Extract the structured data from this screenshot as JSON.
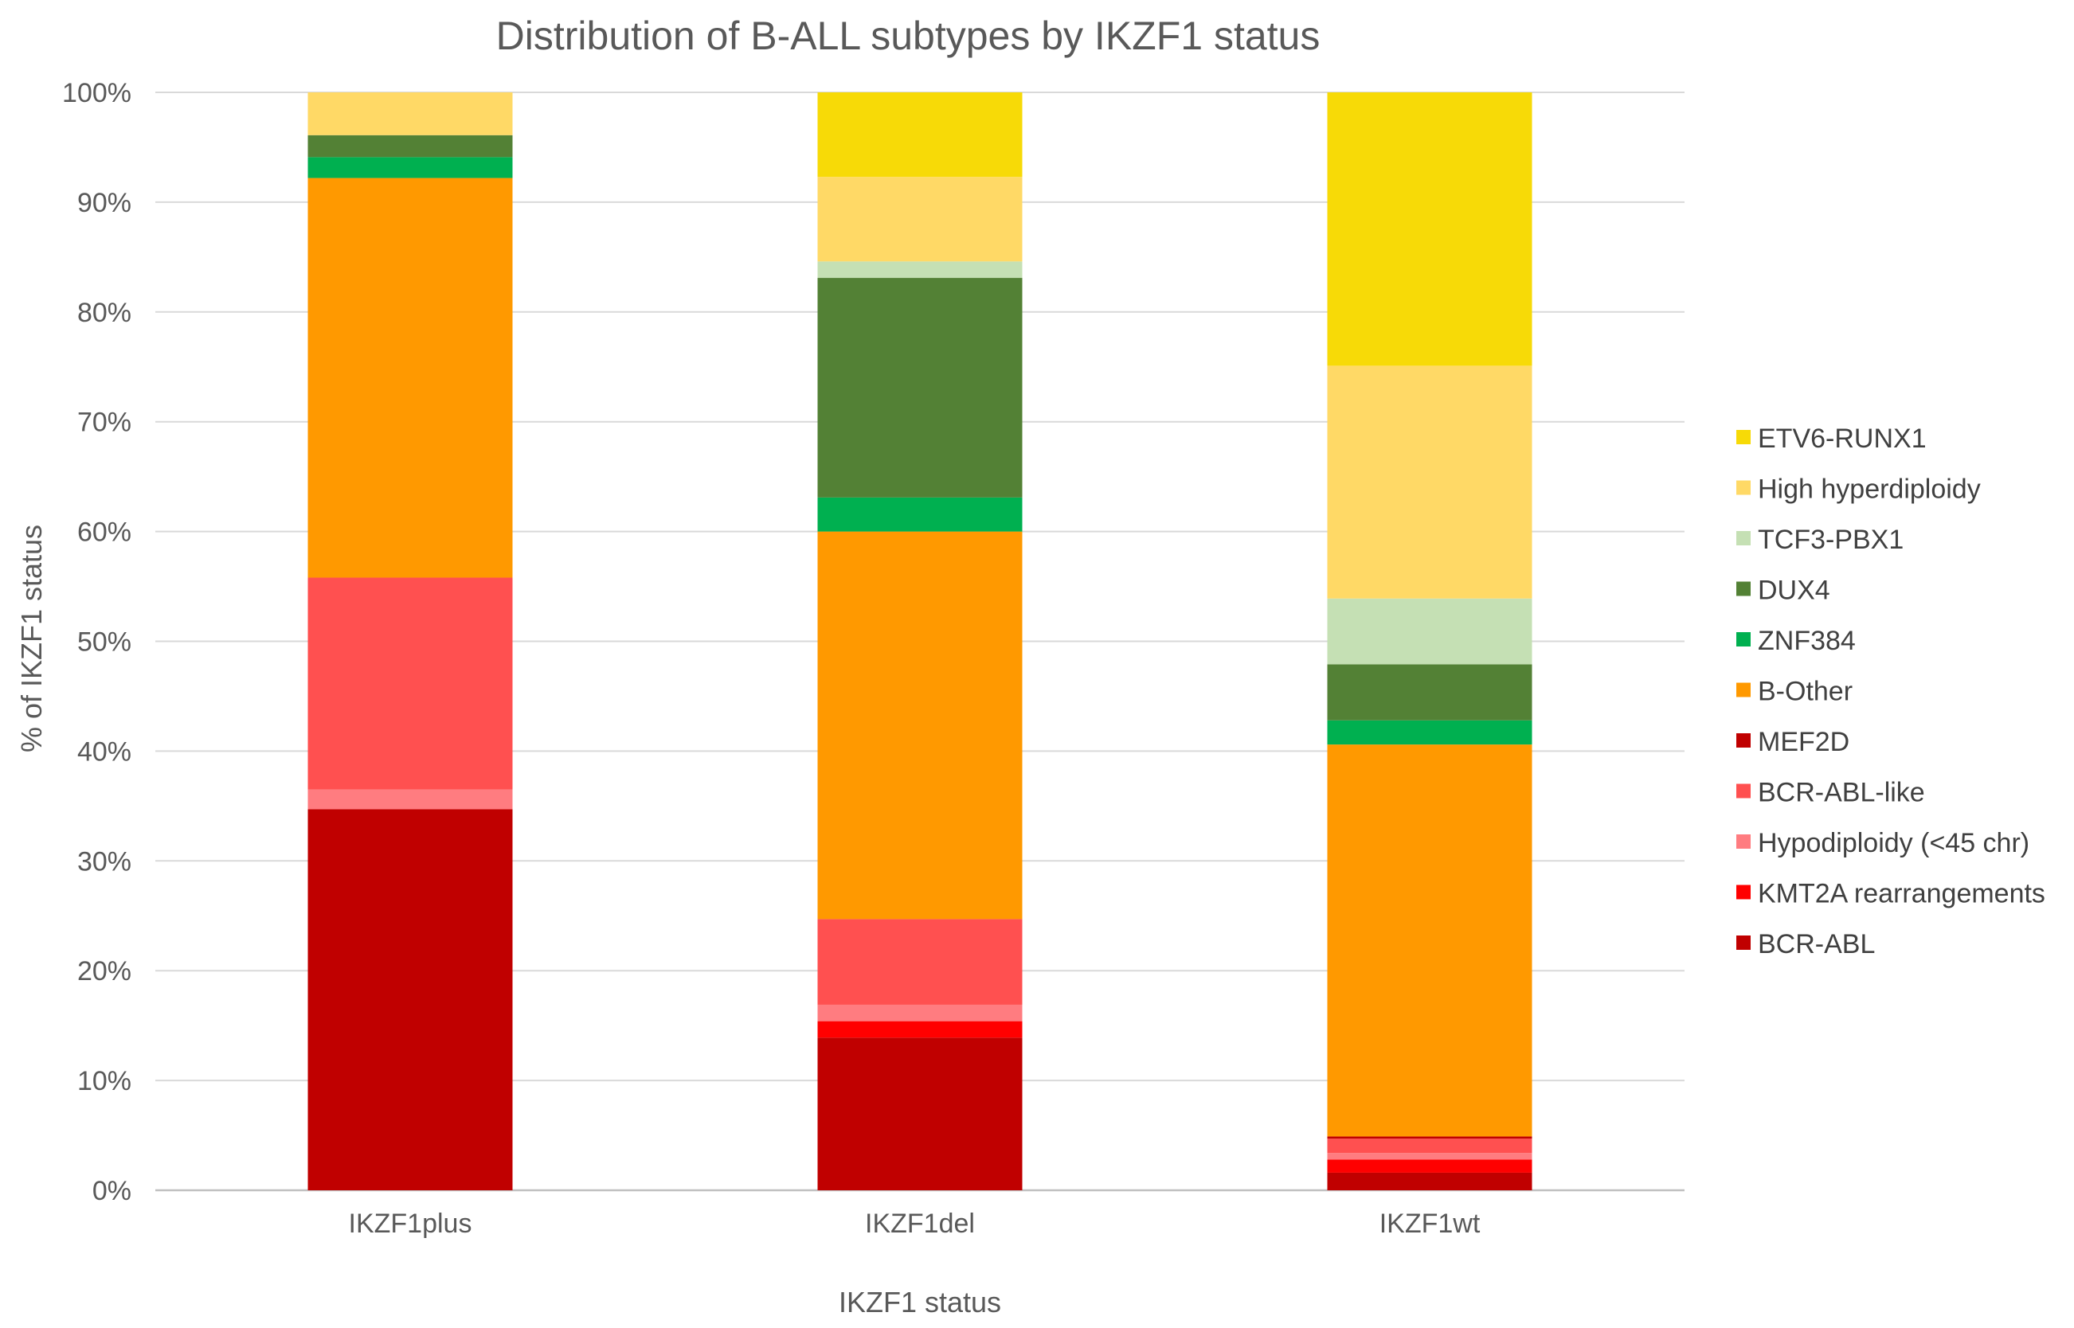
{
  "chart_data": {
    "type": "bar",
    "stacked": true,
    "title": "Distribution of B-ALL subtypes by IKZF1 status",
    "xlabel": "IKZF1 status",
    "ylabel": "% of IKZF1 status",
    "ylim": [
      0,
      100
    ],
    "yticks": [
      "0%",
      "10%",
      "20%",
      "30%",
      "40%",
      "50%",
      "60%",
      "70%",
      "80%",
      "90%",
      "100%"
    ],
    "categories": [
      "IKZF1plus",
      "IKZF1del",
      "IKZF1wt"
    ],
    "legend_position": "right",
    "series": [
      {
        "name": "BCR-ABL",
        "color": "#C00000",
        "values": [
          34.7,
          13.9,
          1.6
        ]
      },
      {
        "name": "KMT2A rearrangements",
        "color": "#FF0000",
        "values": [
          0,
          1.5,
          1.2
        ]
      },
      {
        "name": "Hypodiploidy (<45 chr)",
        "color": "#FF7C80",
        "values": [
          1.8,
          1.5,
          0.6
        ]
      },
      {
        "name": "BCR-ABL-like",
        "color": "#FF5050",
        "values": [
          19.3,
          7.8,
          1.3
        ]
      },
      {
        "name": "MEF2D",
        "color": "#C00000",
        "values": [
          0,
          0,
          0.2
        ]
      },
      {
        "name": "B-Other",
        "color": "#FF9900",
        "values": [
          36.4,
          35.3,
          35.7
        ]
      },
      {
        "name": "ZNF384",
        "color": "#00B050",
        "values": [
          1.9,
          3.1,
          2.2
        ]
      },
      {
        "name": "DUX4",
        "color": "#538135",
        "values": [
          2.0,
          20.0,
          5.1
        ]
      },
      {
        "name": "TCF3-PBX1",
        "color": "#C5E0B4",
        "values": [
          0,
          1.5,
          6.0
        ]
      },
      {
        "name": "High hyperdiploidy",
        "color": "#FFD966",
        "values": [
          3.9,
          7.7,
          21.2
        ]
      },
      {
        "name": "ETV6-RUNX1",
        "color": "#F7DA07",
        "values": [
          0,
          7.7,
          24.9
        ]
      }
    ]
  }
}
